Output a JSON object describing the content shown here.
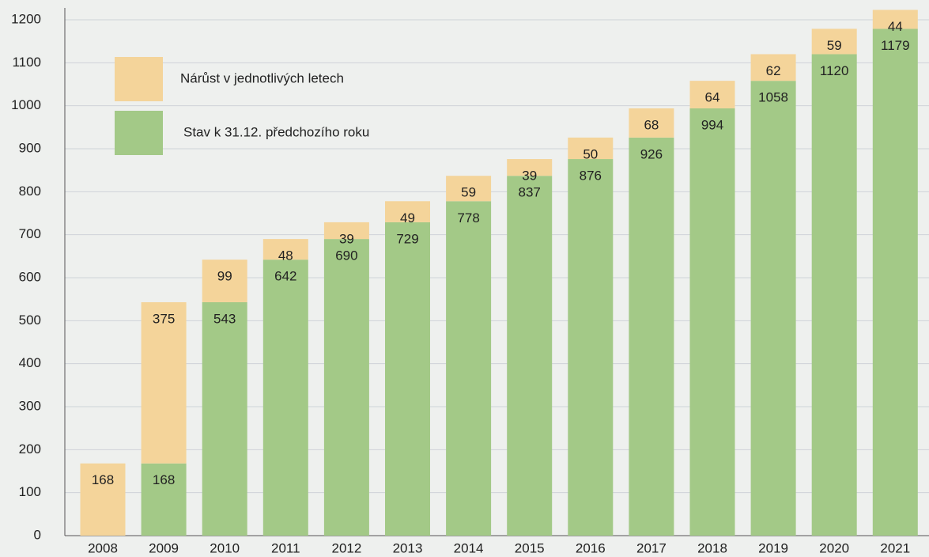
{
  "chart_data": {
    "type": "stacked-bar",
    "categories": [
      "2008",
      "2009",
      "2010",
      "2011",
      "2012",
      "2013",
      "2014",
      "2015",
      "2016",
      "2017",
      "2018",
      "2019",
      "2020",
      "2021"
    ],
    "series": [
      {
        "name": "Stav k 31.12. předchozího roku",
        "color": "#a3c987",
        "values": [
          null,
          168,
          543,
          642,
          690,
          729,
          778,
          837,
          876,
          926,
          994,
          1058,
          1120,
          1179
        ]
      },
      {
        "name": "Nárůst v jednotlivých letech",
        "color": "#f4d49a",
        "values": [
          168,
          375,
          99,
          48,
          39,
          49,
          59,
          39,
          50,
          68,
          64,
          62,
          59,
          44
        ]
      }
    ],
    "ylim": [
      0,
      1200
    ],
    "yticks": [
      0,
      100,
      200,
      300,
      400,
      500,
      600,
      700,
      800,
      900,
      1000,
      1100,
      1200
    ],
    "grid": true
  }
}
